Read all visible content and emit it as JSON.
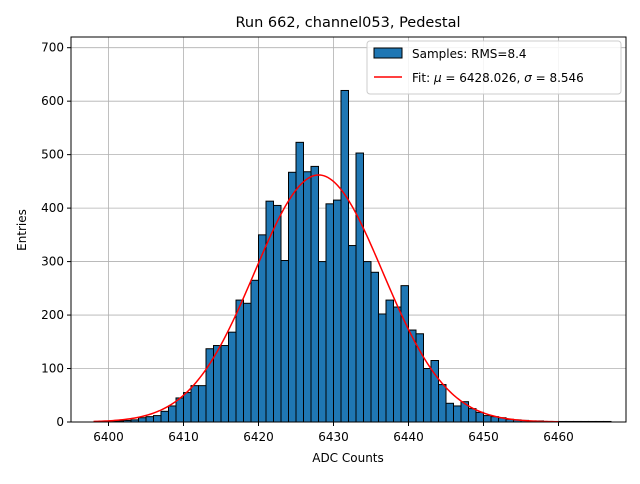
{
  "chart_data": {
    "type": "bar",
    "title": "Run 662, channel053, Pedestal",
    "xlabel": "ADC Counts",
    "ylabel": "Entries",
    "xlim": [
      6395,
      6469
    ],
    "ylim": [
      0,
      720
    ],
    "xticks": [
      6400,
      6410,
      6420,
      6430,
      6440,
      6450,
      6460
    ],
    "yticks": [
      0,
      100,
      200,
      300,
      400,
      500,
      600,
      700
    ],
    "grid": true,
    "legend_position": "top-right",
    "bin_start": 6399,
    "bin_width": 1,
    "series": [
      {
        "name": "Samples: RMS=8.4",
        "kind": "histogram",
        "color": "#1f77b4",
        "edge_color": "#000000",
        "values": [
          1,
          2,
          2,
          3,
          4,
          8,
          10,
          12,
          20,
          30,
          45,
          55,
          68,
          68,
          137,
          143,
          143,
          168,
          228,
          222,
          265,
          350,
          413,
          405,
          302,
          467,
          523,
          468,
          478,
          300,
          408,
          415,
          620,
          330,
          503,
          300,
          280,
          202,
          228,
          215,
          255,
          172,
          165,
          100,
          115,
          70,
          35,
          30,
          38,
          25,
          18,
          12,
          10,
          8,
          5,
          4,
          3,
          2,
          2,
          1,
          1,
          1,
          1,
          1,
          1,
          1,
          1,
          1
        ]
      },
      {
        "name": "Fit: μ = 6428.026, σ = 8.546",
        "kind": "gaussian",
        "color": "#ff0000",
        "mu": 6428.026,
        "sigma": 8.546,
        "amplitude": 462,
        "x_range": [
          6398,
          6460
        ]
      }
    ]
  },
  "legend": {
    "samples_label": "Samples: RMS=8.4",
    "fit_prefix": "Fit: ",
    "fit_mu": "μ",
    "fit_mu_value": " = 6428.026, ",
    "fit_sigma": "σ",
    "fit_sigma_value": " = 8.546"
  },
  "colors": {
    "bar": "#1f77b4",
    "fit": "#ff0000",
    "grid": "#b0b0b0"
  }
}
